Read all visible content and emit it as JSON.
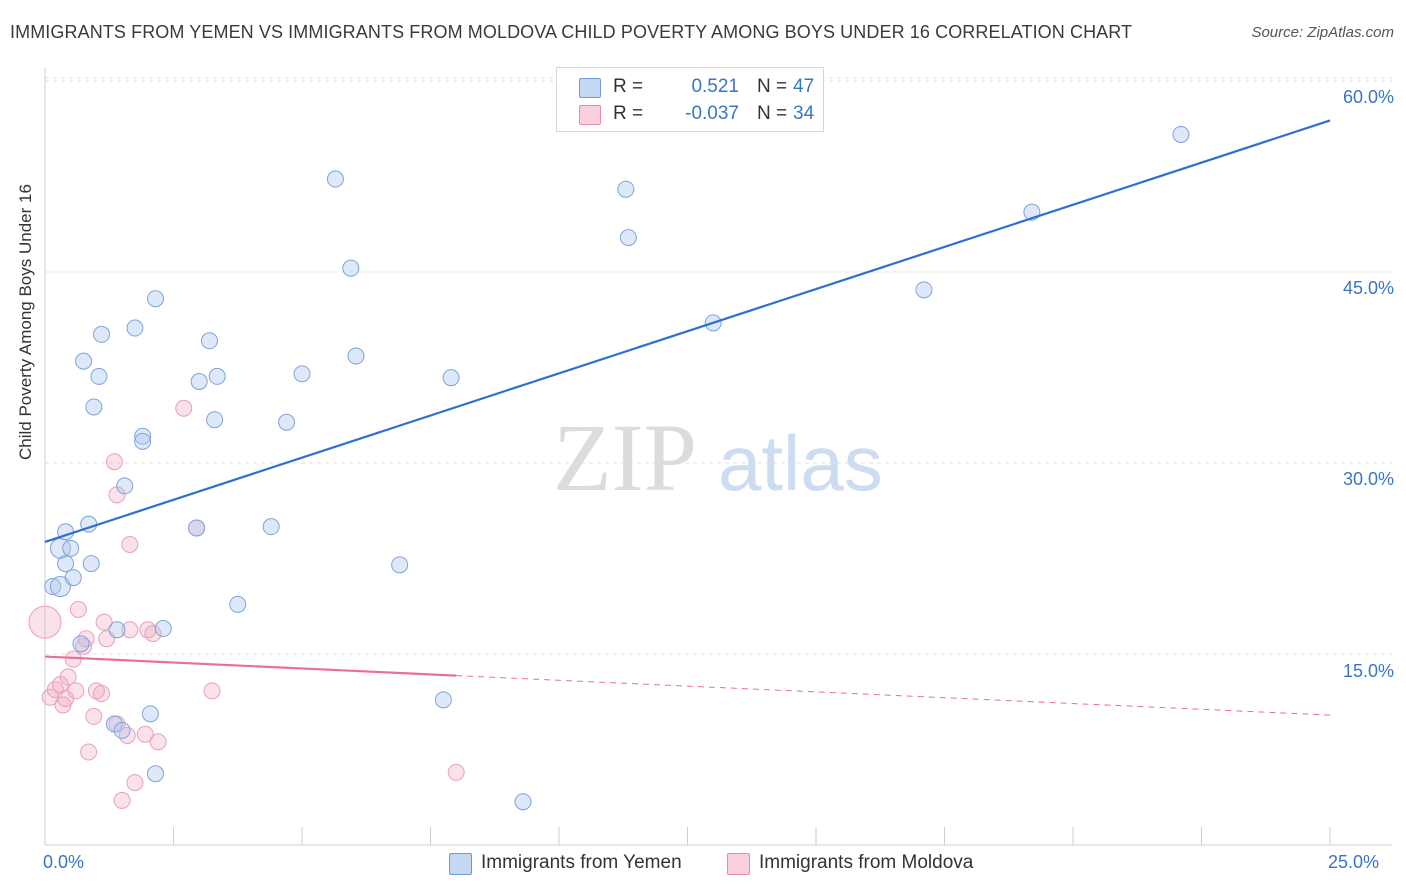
{
  "title": "IMMIGRANTS FROM YEMEN VS IMMIGRANTS FROM MOLDOVA CHILD POVERTY AMONG BOYS UNDER 16 CORRELATION CHART",
  "source": "Source: ZipAtlas.com",
  "watermark": {
    "zip": "ZIP",
    "atlas": "atlas"
  },
  "legend": {
    "r_label": "R =",
    "n_label": "N =",
    "rows": [
      {
        "r": "0.521",
        "n": "47",
        "color": "#6f9ad6"
      },
      {
        "r": "-0.037",
        "n": "34",
        "color": "#e88aa9"
      }
    ]
  },
  "series_labels": {
    "yemen": "Immigrants from Yemen",
    "moldova": "Immigrants from Moldova"
  },
  "chart_data": {
    "type": "scatter",
    "title": "IMMIGRANTS FROM YEMEN VS IMMIGRANTS FROM MOLDOVA CHILD POVERTY AMONG BOYS UNDER 16 CORRELATION CHART",
    "xlabel": "",
    "ylabel": "Child Poverty Among Boys Under 16",
    "xlim": [
      0,
      25
    ],
    "ylim": [
      0,
      62
    ],
    "x_tick_labels": [
      "0.0%",
      "25.0%"
    ],
    "y_tick_labels": [
      "15.0%",
      "30.0%",
      "45.0%",
      "60.0%"
    ],
    "y_ticks": [
      15,
      30,
      45,
      60
    ],
    "series": [
      {
        "name": "Immigrants from Yemen",
        "color": "#6f9ad6",
        "points": [
          [
            0.15,
            20.3
          ],
          [
            0.3,
            23.3
          ],
          [
            0.3,
            20.3
          ],
          [
            0.4,
            22.1
          ],
          [
            0.4,
            24.6
          ],
          [
            0.5,
            23.3
          ],
          [
            0.55,
            21.0
          ],
          [
            0.7,
            15.8
          ],
          [
            0.75,
            38.0
          ],
          [
            0.85,
            25.2
          ],
          [
            0.9,
            22.1
          ],
          [
            0.95,
            34.4
          ],
          [
            1.05,
            36.8
          ],
          [
            1.1,
            40.1
          ],
          [
            1.35,
            9.5
          ],
          [
            1.4,
            16.9
          ],
          [
            1.5,
            9.0
          ],
          [
            1.55,
            28.2
          ],
          [
            1.75,
            40.6
          ],
          [
            1.9,
            32.1
          ],
          [
            1.9,
            31.7
          ],
          [
            2.05,
            10.3
          ],
          [
            2.15,
            42.9
          ],
          [
            2.15,
            5.6
          ],
          [
            2.3,
            17.0
          ],
          [
            2.95,
            24.9
          ],
          [
            3.0,
            36.4
          ],
          [
            3.2,
            39.6
          ],
          [
            3.3,
            33.4
          ],
          [
            3.35,
            36.8
          ],
          [
            3.75,
            18.9
          ],
          [
            4.4,
            25.0
          ],
          [
            4.7,
            33.2
          ],
          [
            5.0,
            37.0
          ],
          [
            5.65,
            52.3
          ],
          [
            5.95,
            45.3
          ],
          [
            6.05,
            38.4
          ],
          [
            6.9,
            22.0
          ],
          [
            7.75,
            11.4
          ],
          [
            7.9,
            36.7
          ],
          [
            9.3,
            3.4
          ],
          [
            11.3,
            51.5
          ],
          [
            11.35,
            47.7
          ],
          [
            13.0,
            41.0
          ],
          [
            17.1,
            43.6
          ],
          [
            19.2,
            49.7
          ],
          [
            22.1,
            55.8
          ]
        ],
        "trend": {
          "x": [
            0,
            25
          ],
          "y": [
            23.8,
            56.9
          ]
        }
      },
      {
        "name": "Immigrants from Moldova",
        "color": "#e88aa9",
        "points": [
          [
            0.0,
            17.5
          ],
          [
            0.1,
            11.6
          ],
          [
            0.2,
            12.2
          ],
          [
            0.3,
            12.6
          ],
          [
            0.35,
            11.0
          ],
          [
            0.4,
            11.5
          ],
          [
            0.45,
            13.2
          ],
          [
            0.55,
            14.6
          ],
          [
            0.6,
            12.1
          ],
          [
            0.65,
            18.5
          ],
          [
            0.75,
            15.6
          ],
          [
            0.8,
            16.2
          ],
          [
            0.85,
            7.3
          ],
          [
            0.95,
            10.1
          ],
          [
            1.0,
            12.1
          ],
          [
            1.1,
            11.9
          ],
          [
            1.15,
            17.5
          ],
          [
            1.2,
            16.2
          ],
          [
            1.35,
            30.1
          ],
          [
            1.4,
            9.5
          ],
          [
            1.4,
            27.5
          ],
          [
            1.5,
            3.5
          ],
          [
            1.6,
            8.6
          ],
          [
            1.65,
            16.9
          ],
          [
            1.65,
            23.6
          ],
          [
            1.75,
            4.9
          ],
          [
            1.95,
            8.7
          ],
          [
            2.0,
            16.9
          ],
          [
            2.1,
            16.6
          ],
          [
            2.2,
            8.1
          ],
          [
            2.7,
            34.3
          ],
          [
            2.95,
            24.9
          ],
          [
            3.25,
            12.1
          ],
          [
            8.0,
            5.7
          ]
        ],
        "trend": {
          "x": [
            0,
            8.0
          ],
          "y": [
            14.8,
            13.3
          ]
        },
        "trend_dashed": {
          "x": [
            8.0,
            25
          ],
          "y": [
            13.3,
            10.2
          ]
        }
      }
    ],
    "legend_position": "top-center",
    "grid": true
  }
}
